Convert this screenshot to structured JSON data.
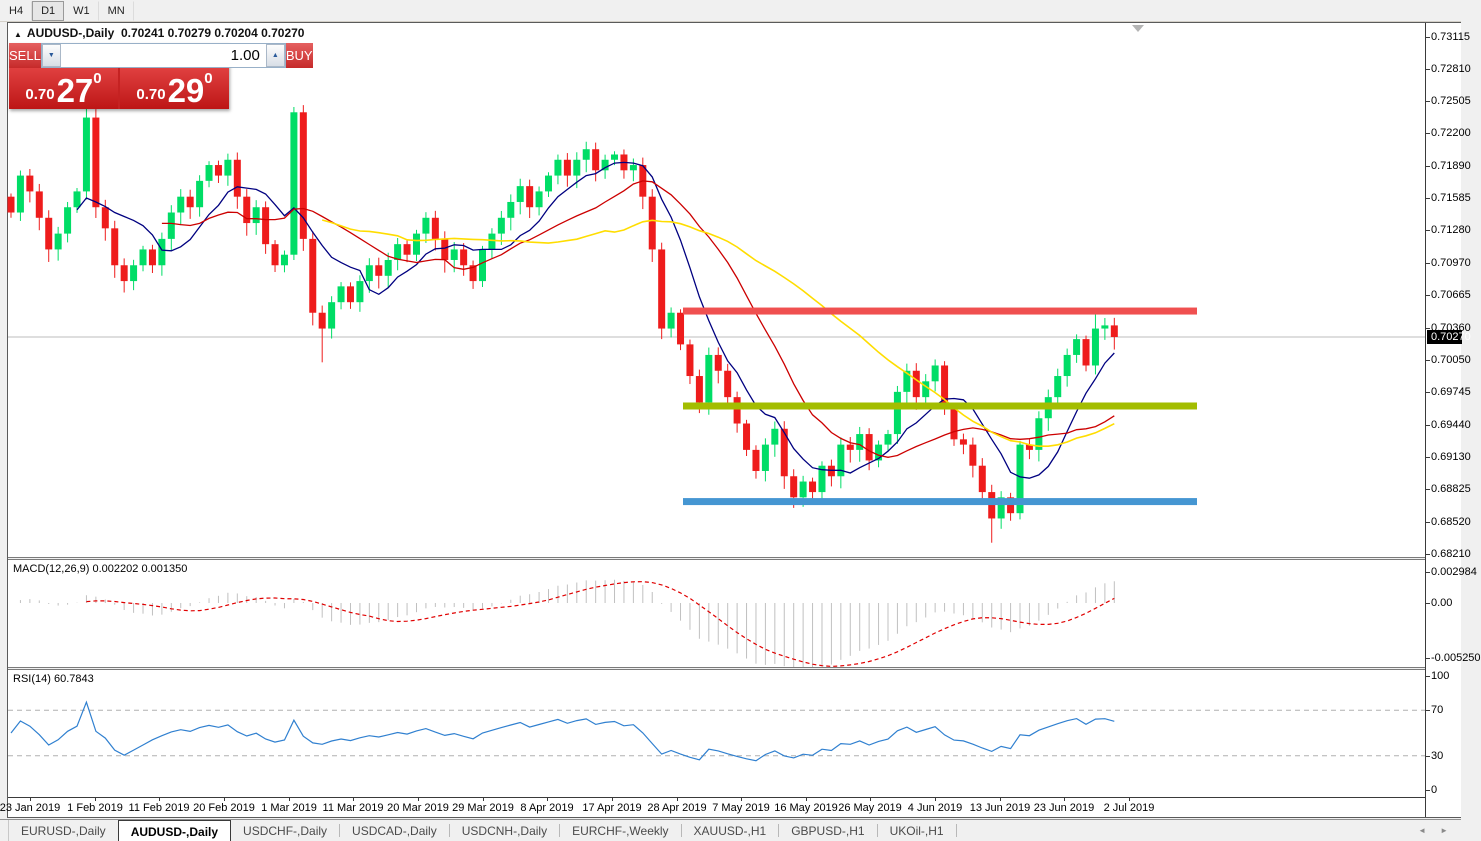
{
  "toolbar": {
    "timeframes": [
      {
        "label": "H4",
        "active": false
      },
      {
        "label": "D1",
        "active": true
      },
      {
        "label": "W1",
        "active": false
      },
      {
        "label": "MN",
        "active": false
      }
    ]
  },
  "chart_header": {
    "collapse_icon": "▲",
    "title": "AUDUSD-,Daily",
    "ohlc_text": "0.70241 0.70279 0.70204 0.70270"
  },
  "trade_panel": {
    "sell_label": "SELL",
    "buy_label": "BUY",
    "volume": "1.00",
    "vol_down_icon": "▼",
    "vol_up_icon": "▲",
    "sell_price_base": "0.70",
    "sell_price_big": "27",
    "sell_price_sup": "0",
    "buy_price_base": "0.70",
    "buy_price_big": "29",
    "buy_price_sup": "0"
  },
  "price_axis": {
    "labels": [
      "0.73115",
      "0.72810",
      "0.72505",
      "0.72200",
      "0.71890",
      "0.71585",
      "0.71280",
      "0.70970",
      "0.70665",
      "0.70360",
      "0.70050",
      "0.69745",
      "0.69440",
      "0.69130",
      "0.68825",
      "0.68520",
      "0.68210"
    ],
    "current_price_label": "0.70270"
  },
  "chart_data": {
    "type": "candlestick",
    "symbol": "AUDUSD-",
    "timeframe": "Daily",
    "ohlc_display": {
      "open": "0.70241",
      "high": "0.70279",
      "low": "0.70204",
      "close": "0.70270"
    },
    "current_price": 0.7027,
    "up_color": "#00DD66",
    "down_color": "#EE1C1C",
    "closes": [
      0.7145,
      0.718,
      0.7165,
      0.714,
      0.711,
      0.7125,
      0.715,
      0.7165,
      0.7235,
      0.715,
      0.713,
      0.7095,
      0.708,
      0.7095,
      0.711,
      0.7095,
      0.712,
      0.7145,
      0.716,
      0.715,
      0.7175,
      0.719,
      0.718,
      0.7195,
      0.716,
      0.7135,
      0.715,
      0.7115,
      0.7095,
      0.7105,
      0.724,
      0.712,
      0.705,
      0.7035,
      0.706,
      0.7075,
      0.706,
      0.708,
      0.7095,
      0.7085,
      0.71,
      0.7115,
      0.7105,
      0.7125,
      0.714,
      0.712,
      0.71,
      0.711,
      0.7095,
      0.708,
      0.711,
      0.7125,
      0.714,
      0.7155,
      0.717,
      0.715,
      0.7165,
      0.718,
      0.7195,
      0.718,
      0.7195,
      0.7205,
      0.7185,
      0.7195,
      0.72,
      0.7185,
      0.719,
      0.716,
      0.711,
      0.7035,
      0.705,
      0.702,
      0.699,
      0.6965,
      0.701,
      0.6995,
      0.697,
      0.6945,
      0.692,
      0.69,
      0.6925,
      0.694,
      0.6895,
      0.6875,
      0.689,
      0.688,
      0.6905,
      0.6895,
      0.6925,
      0.692,
      0.6935,
      0.691,
      0.6925,
      0.6935,
      0.6975,
      0.6995,
      0.697,
      0.6985,
      0.7,
      0.696,
      0.693,
      0.6925,
      0.6905,
      0.688,
      0.6855,
      0.6875,
      0.686,
      0.6925,
      0.692,
      0.695,
      0.697,
      0.699,
      0.701,
      0.7025,
      0.7,
      0.7035,
      0.7038,
      0.7027
    ],
    "wick_overrides": {
      "8": {
        "h": 0.7245
      },
      "9": {
        "h": 0.7243
      },
      "30": {
        "h": 0.7245,
        "l": 0.71
      },
      "33": {
        "l": 0.7003
      },
      "69": {
        "l": 0.7025
      },
      "83": {
        "l": 0.6865
      },
      "104": {
        "l": 0.6832
      },
      "115": {
        "h": 0.7049
      },
      "116": {
        "h": 0.7045
      }
    },
    "moving_averages": [
      {
        "name": "ma-fast",
        "period": 8,
        "color": "#000080",
        "width": 1.3
      },
      {
        "name": "ma-mid",
        "period": 17,
        "color": "#CC0000",
        "width": 1.3
      },
      {
        "name": "ma-slow",
        "period": 34,
        "color": "#FFDD00",
        "width": 1.6
      }
    ],
    "hlines": [
      {
        "name": "resistance-line",
        "price": 0.70516,
        "color": "#F05050"
      },
      {
        "name": "mid-support-line",
        "price": 0.69616,
        "color": "#A3BD00"
      },
      {
        "name": "support-line",
        "price": 0.6871,
        "color": "#4596D2"
      }
    ]
  },
  "macd_panel": {
    "name": "MACD(12,26,9)",
    "value_main": "0.002202",
    "value_signal": "0.001350",
    "fast": 12,
    "slow": 26,
    "signal": 9,
    "axis_labels": [
      "0.002984",
      "0.00",
      "-0.005250"
    ],
    "axis_values": [
      0.002984,
      0,
      -0.00525
    ],
    "hist_color": "#C0C0C0",
    "signal_color": "#E00000"
  },
  "rsi_panel": {
    "name": "RSI(14)",
    "value": "60.7843",
    "period": 14,
    "axis_labels": [
      "100",
      "70",
      "30",
      "0"
    ],
    "axis_values": [
      100,
      70,
      30,
      0
    ],
    "levels": [
      70,
      30
    ],
    "line_color": "#3080D0"
  },
  "date_axis": {
    "labels": [
      "23 Jan 2019",
      "1 Feb 2019",
      "11 Feb 2019",
      "20 Feb 2019",
      "1 Mar 2019",
      "11 Mar 2019",
      "20 Mar 2019",
      "29 Mar 2019",
      "8 Apr 2019",
      "17 Apr 2019",
      "28 Apr 2019",
      "7 May 2019",
      "16 May 2019",
      "26 May 2019",
      "4 Jun 2019",
      "13 Jun 2019",
      "23 Jun 2019",
      "2 Jul 2019"
    ]
  },
  "tabbar": {
    "tabs": [
      {
        "label": "EURUSD-,Daily",
        "active": false
      },
      {
        "label": "AUDUSD-,Daily",
        "active": true
      },
      {
        "label": "USDCHF-,Daily",
        "active": false
      },
      {
        "label": "USDCAD-,Daily",
        "active": false
      },
      {
        "label": "USDCNH-,Daily",
        "active": false
      },
      {
        "label": "EURCHF-,Weekly",
        "active": false
      },
      {
        "label": "XAUUSD-,H1",
        "active": false
      },
      {
        "label": "GBPUSD-,H1",
        "active": false
      },
      {
        "label": "UKOil-,H1",
        "active": false
      }
    ],
    "scroll_left_icon": "◄",
    "scroll_right_icon": "►"
  }
}
